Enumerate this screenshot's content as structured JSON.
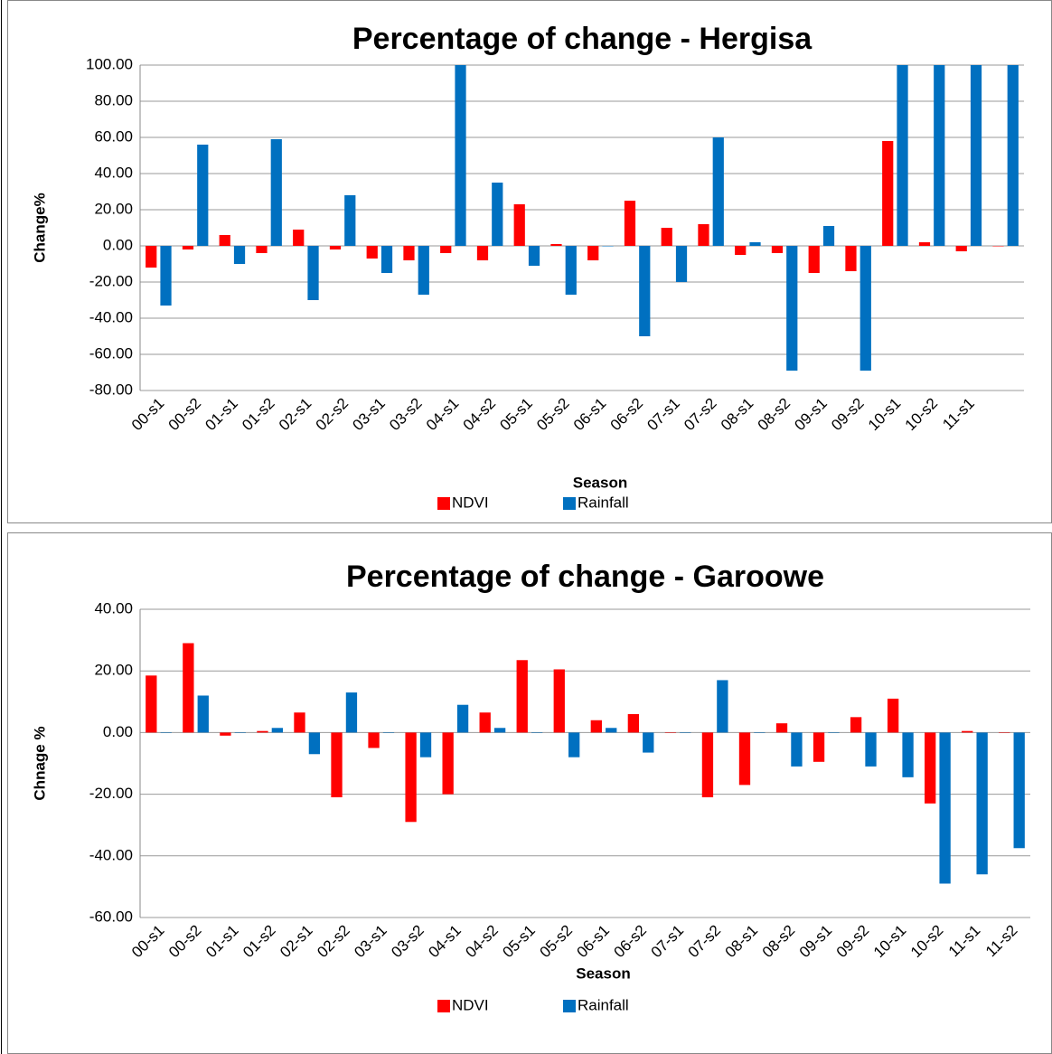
{
  "chart_data": [
    {
      "type": "bar",
      "title": "Percentage of change - Hergisa",
      "x_label": "Season",
      "y_label": "Change%",
      "categories": [
        "00-s1",
        "00-s2",
        "01-s1",
        "01-s2",
        "02-s1",
        "02-s2",
        "03-s1",
        "03-s2",
        "04-s1",
        "04-s2",
        "05-s1",
        "05-s2",
        "06-s1",
        "06-s2",
        "07-s1",
        "07-s2",
        "08-s1",
        "08-s2",
        "09-s1",
        "09-s2",
        "10-s1",
        "10-s2",
        "11-s1",
        null
      ],
      "series": [
        {
          "name": "NDVI",
          "color": "#ff0000",
          "values": [
            -12,
            -2,
            6,
            -4,
            9,
            -2,
            -7,
            -8,
            -4,
            -8,
            23,
            1,
            -8,
            25,
            10,
            12,
            -5,
            -4,
            -15,
            -14,
            58,
            2,
            -3,
            0
          ]
        },
        {
          "name": "Rainfall",
          "color": "#0070c0",
          "values": [
            -33,
            56,
            -10,
            59,
            -30,
            28,
            -15,
            -27,
            100,
            35,
            -11,
            -27,
            0,
            -50,
            -20,
            60,
            2,
            -69,
            11,
            -69,
            100,
            100,
            100,
            100
          ]
        }
      ],
      "ylim": [
        -80,
        100
      ],
      "yticks": [
        {
          "value": -80,
          "label": "-80.00"
        },
        {
          "value": -60,
          "label": "-60.00"
        },
        {
          "value": -40,
          "label": "-40.00"
        },
        {
          "value": -20,
          "label": "-20.00"
        },
        {
          "value": 0,
          "label": "0.00"
        },
        {
          "value": 20,
          "label": "20.00"
        },
        {
          "value": 40,
          "label": "40.00"
        },
        {
          "value": 60,
          "label": "60.00"
        },
        {
          "value": 80,
          "label": "80.00"
        },
        {
          "value": 100,
          "label": "100.00"
        }
      ],
      "grid": true
    },
    {
      "type": "bar",
      "title": "Percentage of change  - Garoowe",
      "x_label": "Season",
      "y_label": "Chnage %",
      "categories": [
        "00-s1",
        "00-s2",
        "01-s1",
        "01-s2",
        "02-s1",
        "02-s2",
        "03-s1",
        "03-s2",
        "04-s1",
        "04-s2",
        "05-s1",
        "05-s2",
        "06-s1",
        "06-s2",
        "07-s1",
        "07-s2",
        "08-s1",
        "08-s2",
        "09-s1",
        "09-s2",
        "10-s1",
        "10-s2",
        "11-s1",
        "11-s2"
      ],
      "series": [
        {
          "name": "NDVI",
          "color": "#ff0000",
          "values": [
            18.5,
            29,
            -1,
            0.5,
            6.5,
            -21,
            -5,
            -29,
            -20,
            6.5,
            23.5,
            20.5,
            4,
            6,
            0,
            -21,
            -17,
            3,
            -9.5,
            5,
            11,
            -23,
            0.5,
            0
          ]
        },
        {
          "name": "Rainfall",
          "color": "#0070c0",
          "values": [
            0,
            12,
            0,
            1.5,
            -7,
            13,
            0,
            -8,
            9,
            1.5,
            0,
            -8,
            1.5,
            -6.5,
            0,
            17,
            0,
            -11,
            0,
            -11,
            -14.5,
            -49,
            -46,
            -37.5
          ]
        }
      ],
      "ylim": [
        -60,
        40
      ],
      "yticks": [
        {
          "value": -60,
          "label": "-60.00"
        },
        {
          "value": -40,
          "label": "-40.00"
        },
        {
          "value": -20,
          "label": "-20.00"
        },
        {
          "value": 0,
          "label": "0.00"
        },
        {
          "value": 20,
          "label": "20.00"
        },
        {
          "value": 40,
          "label": "40.00"
        }
      ],
      "grid": true
    }
  ]
}
